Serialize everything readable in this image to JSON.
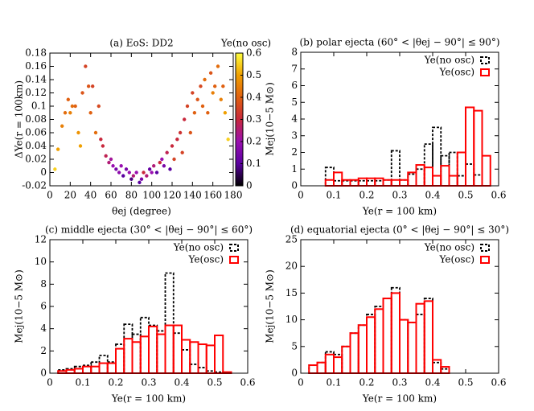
{
  "chart_data": [
    {
      "type": "scatter",
      "title": "(a) EoS: DD2",
      "x_label": "θej (degree)",
      "y_label": "ΔYe(r = 100km)",
      "colorbar_label": "Ye(no osc)",
      "x": [
        5,
        8,
        12,
        15,
        18,
        20,
        22,
        25,
        28,
        30,
        32,
        35,
        38,
        40,
        42,
        45,
        48,
        50,
        52,
        55,
        58,
        60,
        62,
        65,
        68,
        70,
        72,
        75,
        78,
        80,
        82,
        85,
        88,
        90,
        92,
        95,
        98,
        100,
        102,
        105,
        108,
        110,
        112,
        115,
        118,
        120,
        122,
        125,
        128,
        130,
        132,
        135,
        138,
        140,
        142,
        145,
        148,
        150,
        152,
        155,
        158,
        160,
        162,
        165,
        168,
        170,
        172,
        175
      ],
      "values": [
        0.005,
        0.035,
        0.07,
        0.09,
        0.11,
        0.09,
        0.1,
        0.1,
        0.06,
        0.04,
        0.12,
        0.16,
        0.13,
        0.09,
        0.13,
        0.06,
        0.1,
        0.05,
        0.04,
        0.025,
        0.015,
        0.02,
        0.01,
        0.005,
        0.0,
        0.01,
        -0.005,
        0.005,
        0.0,
        -0.01,
        -0.005,
        0.0,
        -0.015,
        -0.01,
        0.0,
        -0.005,
        0.005,
        0.0,
        0.01,
        0.0,
        0.015,
        0.02,
        0.01,
        0.03,
        0.005,
        0.04,
        0.02,
        0.05,
        0.06,
        0.03,
        0.08,
        0.1,
        0.06,
        0.12,
        0.09,
        0.11,
        0.13,
        0.1,
        0.14,
        0.09,
        0.15,
        0.12,
        0.13,
        0.16,
        0.11,
        0.13,
        0.09,
        0.05
      ],
      "color_values": [
        0.55,
        0.5,
        0.45,
        0.42,
        0.4,
        0.45,
        0.42,
        0.4,
        0.48,
        0.5,
        0.38,
        0.35,
        0.38,
        0.4,
        0.35,
        0.42,
        0.36,
        0.3,
        0.3,
        0.28,
        0.25,
        0.22,
        0.2,
        0.15,
        0.18,
        0.2,
        0.1,
        0.15,
        0.2,
        0.08,
        0.25,
        0.2,
        0.1,
        0.15,
        0.3,
        0.25,
        0.12,
        0.2,
        0.25,
        0.1,
        0.3,
        0.2,
        0.15,
        0.28,
        0.1,
        0.3,
        0.35,
        0.3,
        0.32,
        0.35,
        0.3,
        0.35,
        0.38,
        0.35,
        0.4,
        0.38,
        0.36,
        0.4,
        0.42,
        0.4,
        0.38,
        0.45,
        0.4,
        0.42,
        0.45,
        0.4,
        0.5,
        0.55
      ],
      "colormap": [
        "#000000",
        "#5a00a0",
        "#9a10b0",
        "#c8283c",
        "#e06010",
        "#f0a000",
        "#ffff40"
      ],
      "xlim": [
        0,
        180
      ],
      "xticks": [
        0,
        20,
        40,
        60,
        80,
        100,
        120,
        140,
        160,
        180
      ],
      "ylim": [
        -0.02,
        0.18
      ],
      "yticks": [
        -0.02,
        0,
        0.02,
        0.04,
        0.06,
        0.08,
        0.1,
        0.12,
        0.14,
        0.16,
        0.18
      ],
      "clim": [
        0,
        0.6
      ],
      "cticks": [
        0,
        0.1,
        0.2,
        0.3,
        0.4,
        0.5,
        0.6
      ]
    },
    {
      "type": "histogram",
      "title": "(b) polar ejecta (60° < |θej − 90°| ≤ 90°)",
      "x_label": "Ye(r = 100 km)",
      "y_label": "Mej(10−5 M⊙)",
      "bins": [
        0.075,
        0.1,
        0.125,
        0.15,
        0.175,
        0.2,
        0.225,
        0.25,
        0.275,
        0.3,
        0.325,
        0.35,
        0.375,
        0.4,
        0.425,
        0.45,
        0.475,
        0.5,
        0.525,
        0.55,
        0.575
      ],
      "series": [
        {
          "name": "Ye(no osc)",
          "color": "#000000",
          "dashed": true,
          "values": [
            1.1,
            0.3,
            0.3,
            0.3,
            0.3,
            0.3,
            0.3,
            0.35,
            2.1,
            0.35,
            0.7,
            1.0,
            2.5,
            3.5,
            1.8,
            2.0,
            0.6,
            1.3,
            0.65,
            0
          ]
        },
        {
          "name": "Ye(osc)",
          "color": "#ff0000",
          "dashed": false,
          "values": [
            0.35,
            0.8,
            0.35,
            0.35,
            0.45,
            0.45,
            0.45,
            0.35,
            0.35,
            0.35,
            0.8,
            1.25,
            1.1,
            0.6,
            1.2,
            0.6,
            2.0,
            4.7,
            4.5,
            1.8
          ]
        }
      ],
      "xlim": [
        0,
        0.6
      ],
      "xticks": [
        0,
        0.1,
        0.2,
        0.3,
        0.4,
        0.5,
        0.6
      ],
      "ylim": [
        0,
        8
      ],
      "yticks": [
        0,
        1,
        2,
        3,
        4,
        5,
        6,
        7,
        8
      ]
    },
    {
      "type": "histogram",
      "title": "(c) middle ejecta (30° < |θej − 90°| ≤ 60°)",
      "x_label": "Ye(r = 100 km)",
      "y_label": "Mej(10−5 M⊙)",
      "bins": [
        0.025,
        0.05,
        0.075,
        0.1,
        0.125,
        0.15,
        0.175,
        0.2,
        0.225,
        0.25,
        0.275,
        0.3,
        0.325,
        0.35,
        0.375,
        0.4,
        0.425,
        0.45,
        0.475,
        0.5,
        0.525,
        0.55
      ],
      "series": [
        {
          "name": "Ye(no osc)",
          "color": "#000000",
          "dashed": true,
          "values": [
            0.3,
            0.4,
            0.6,
            0.7,
            1.0,
            1.6,
            1.0,
            2.6,
            4.4,
            3.5,
            5.0,
            4.3,
            3.8,
            9.0,
            3.6,
            2.1,
            0.8,
            0.5,
            0.2,
            0.1,
            0
          ]
        },
        {
          "name": "Ye(osc)",
          "color": "#ff0000",
          "dashed": false,
          "values": [
            0.2,
            0.3,
            0.4,
            0.6,
            0.6,
            0.9,
            0.9,
            2.2,
            3.1,
            2.8,
            3.3,
            4.2,
            3.5,
            4.3,
            4.3,
            3.0,
            2.8,
            2.6,
            2.5,
            3.4,
            0.1
          ]
        }
      ],
      "xlim": [
        0,
        0.6
      ],
      "xticks": [
        0,
        0.1,
        0.2,
        0.3,
        0.4,
        0.5,
        0.6
      ],
      "ylim": [
        0,
        12
      ],
      "yticks": [
        0,
        2,
        4,
        6,
        8,
        10,
        12
      ]
    },
    {
      "type": "histogram",
      "title": "(d) equatorial ejecta (0° < |θej − 90°| ≤ 30°)",
      "x_label": "Ye(r = 100 km)",
      "y_label": "Mej(10−5 M⊙)",
      "bins": [
        0.025,
        0.05,
        0.075,
        0.1,
        0.125,
        0.15,
        0.175,
        0.2,
        0.225,
        0.25,
        0.275,
        0.3,
        0.325,
        0.35,
        0.375,
        0.4,
        0.425,
        0.45
      ],
      "series": [
        {
          "name": "Ye(no osc)",
          "color": "#000000",
          "dashed": true,
          "values": [
            1.5,
            2,
            4,
            3.5,
            5,
            7.5,
            9,
            11,
            12.5,
            14,
            16,
            10,
            9.5,
            11,
            14,
            2,
            0.8
          ]
        },
        {
          "name": "Ye(osc)",
          "color": "#ff0000",
          "dashed": false,
          "values": [
            1.5,
            2,
            3.5,
            3,
            5,
            7.5,
            9,
            10.5,
            12,
            14,
            15,
            10,
            9.5,
            13,
            13.5,
            2.5,
            1.2
          ]
        }
      ],
      "xlim": [
        0,
        0.6
      ],
      "xticks": [
        0,
        0.1,
        0.2,
        0.3,
        0.4,
        0.5,
        0.6
      ],
      "ylim": [
        0,
        25
      ],
      "yticks": [
        0,
        5,
        10,
        15,
        20,
        25
      ]
    }
  ]
}
